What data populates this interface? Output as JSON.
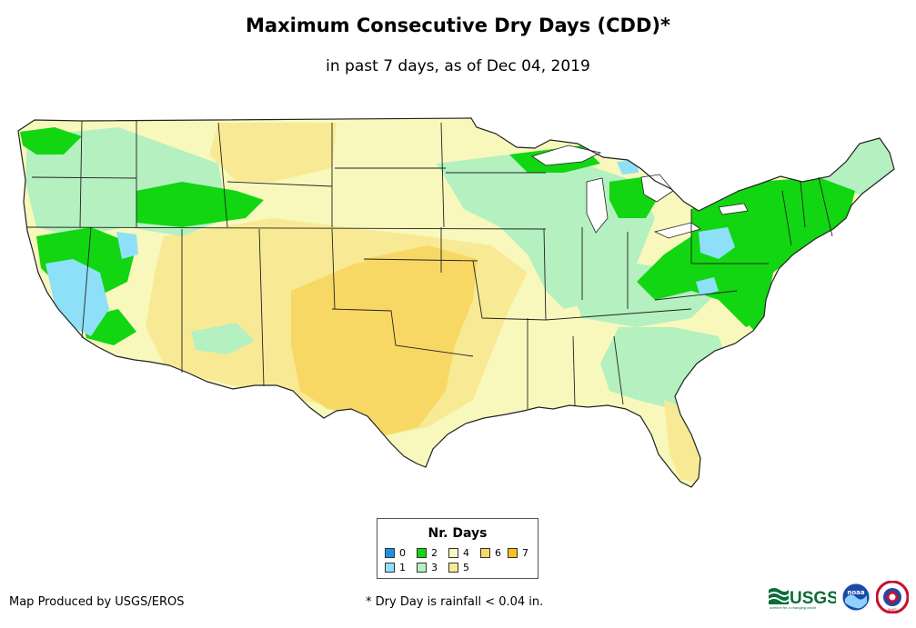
{
  "title": "Maximum Consecutive Dry Days (CDD)*",
  "subtitle": "in past 7 days, as of Dec 04, 2019",
  "legend": {
    "title": "Nr. Days",
    "items": [
      {
        "label": "0",
        "color": "#1e90e8"
      },
      {
        "label": "1",
        "color": "#8ee0f8"
      },
      {
        "label": "2",
        "color": "#11d611"
      },
      {
        "label": "3",
        "color": "#b4f0c0"
      },
      {
        "label": "4",
        "color": "#f8f8bc"
      },
      {
        "label": "5",
        "color": "#f8ea94"
      },
      {
        "label": "6",
        "color": "#f8d864"
      },
      {
        "label": "7",
        "color": "#f8c21a"
      }
    ]
  },
  "footer": {
    "credit": "Map Produced by USGS/EROS",
    "note": "* Dry Day is rainfall < 0.04 in."
  },
  "logos": {
    "usgs": "USGS",
    "usgs_tagline": "science for a changing world",
    "noaa": "noaa",
    "nws": "NWS"
  },
  "colors": {
    "state_border": "#222222",
    "background": "#ffffff"
  }
}
